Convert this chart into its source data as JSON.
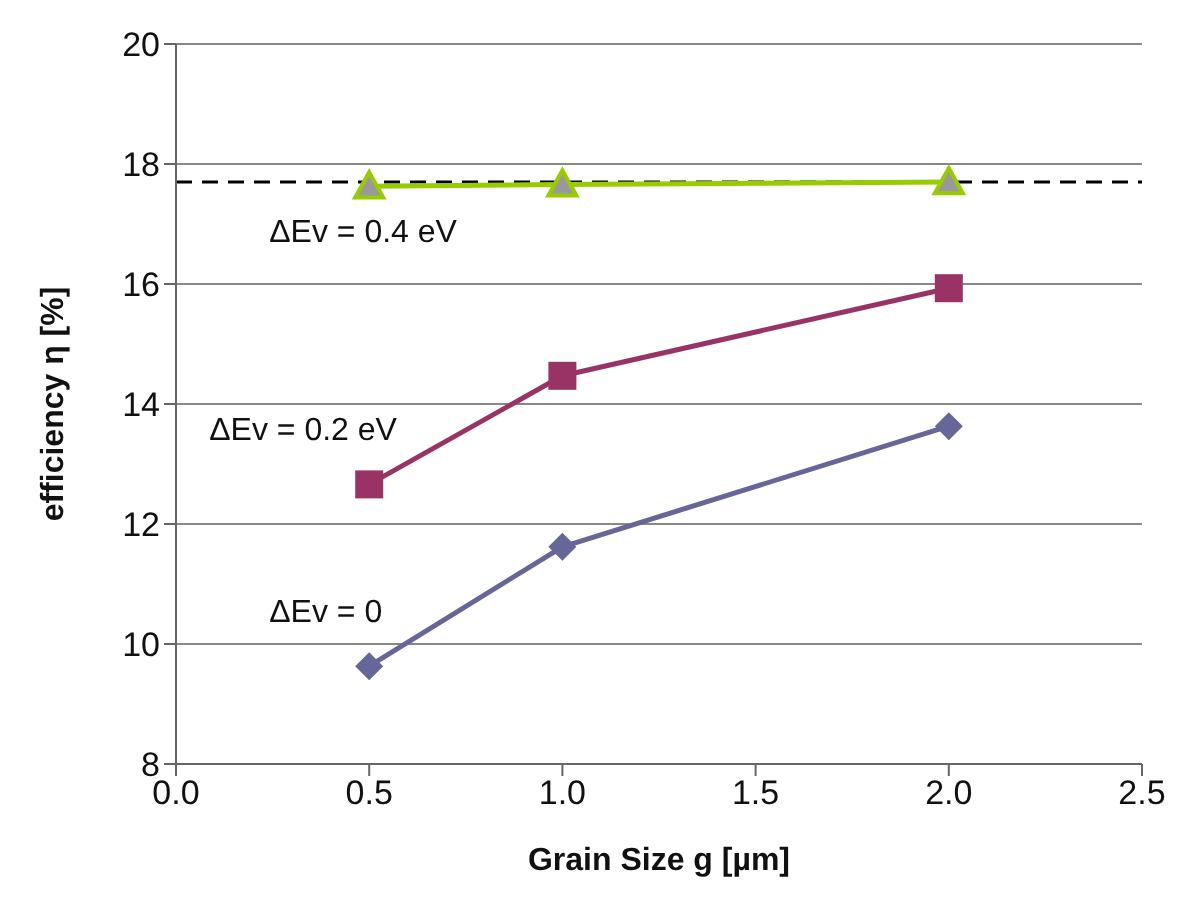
{
  "chart_data": {
    "type": "line",
    "xlabel": "Grain Size g [µm]",
    "ylabel": "efficiency η [%]",
    "x": [
      0.5,
      1.0,
      2.0
    ],
    "series": [
      {
        "name": "ΔEv = 0.4 eV",
        "color": "#99cc00",
        "values": [
          17.63,
          17.66,
          17.7
        ],
        "marker": "triangle"
      },
      {
        "name": "ΔEv = 0.2 eV",
        "color": "#993366",
        "values": [
          12.66,
          14.47,
          15.93
        ],
        "marker": "square"
      },
      {
        "name": "ΔEv = 0",
        "color": "#666699",
        "values": [
          9.63,
          11.62,
          13.63
        ],
        "marker": "diamond"
      }
    ],
    "xlim": [
      0,
      2.5
    ],
    "xticks": [
      {
        "value": 0,
        "label": "0.0"
      },
      {
        "value": 0.5,
        "label": "0.5"
      },
      {
        "value": 1,
        "label": "1.0"
      },
      {
        "value": 1.5,
        "label": "1.5"
      },
      {
        "value": 2,
        "label": "2.0"
      },
      {
        "value": 2.5,
        "label": "2.5"
      }
    ],
    "ylim": [
      8,
      20
    ],
    "yticks": [
      8,
      10,
      12,
      14,
      16,
      18,
      20
    ],
    "grid": "y",
    "legend": false,
    "ref_lines": [
      {
        "axis": "y",
        "value": 17.7,
        "color": "#000000",
        "line_style": "dashed"
      }
    ]
  }
}
